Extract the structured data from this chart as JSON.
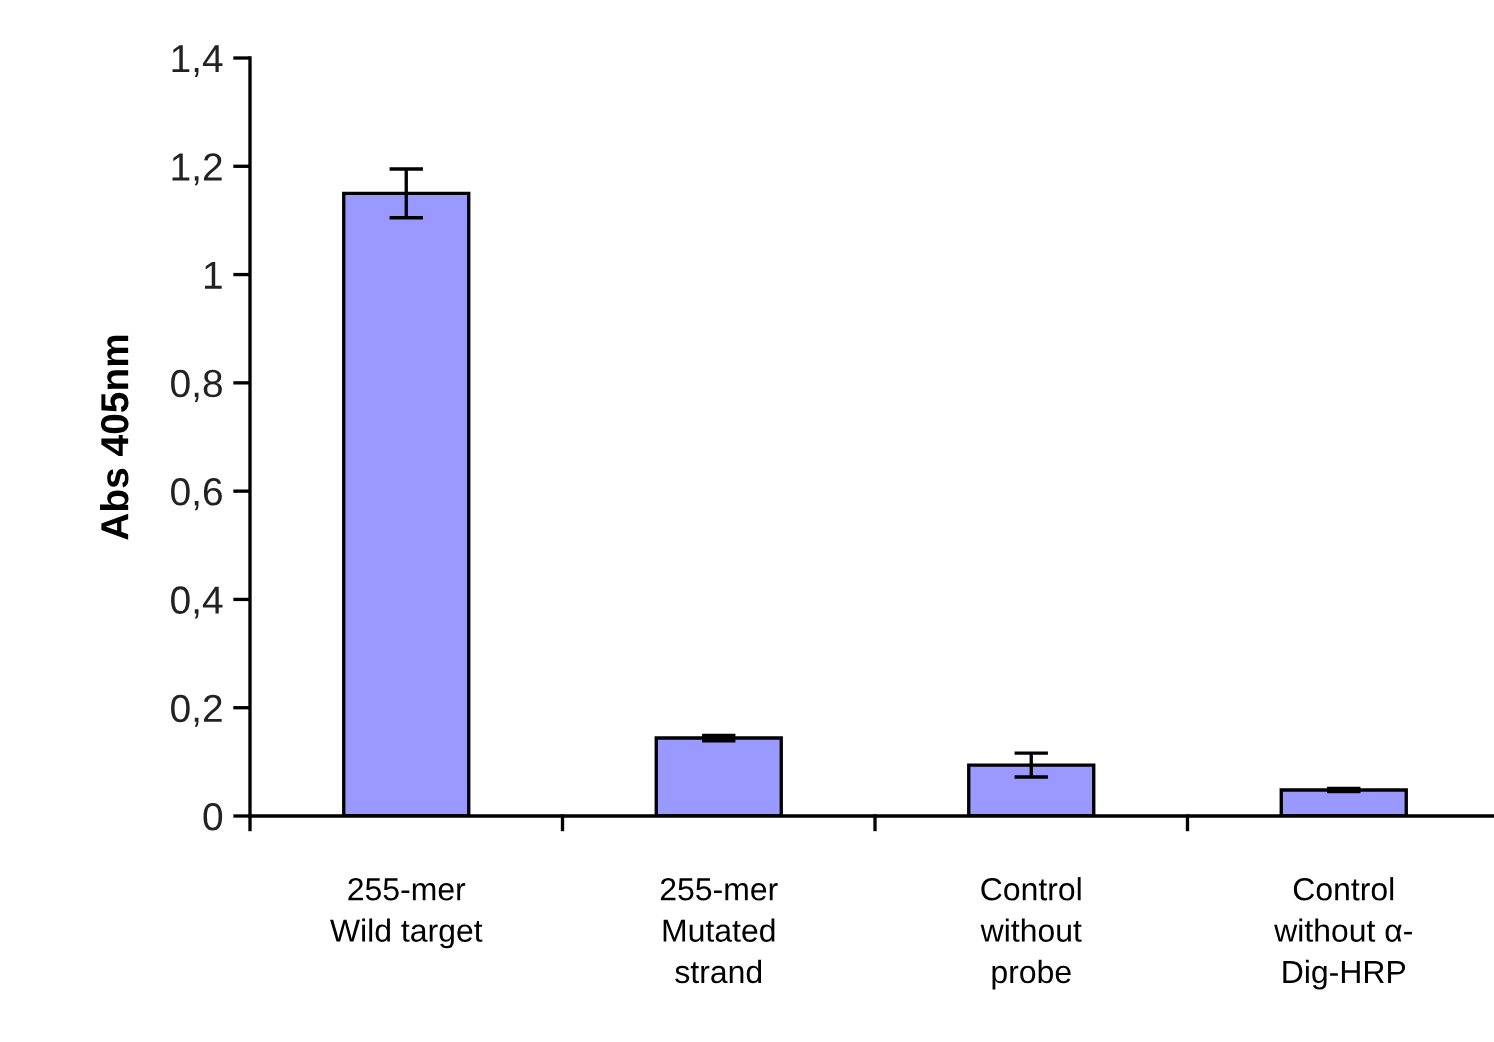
{
  "chart_data": {
    "type": "bar",
    "ylabel": "Abs 405nm",
    "categories": [
      "255-mer\nWild target",
      "255-mer\nMutated\nstrand",
      "Control\nwithout\nprobe",
      "Control\nwithout α-\nDig-HRP"
    ],
    "values": [
      1.15,
      0.144,
      0.094,
      0.048
    ],
    "errors": [
      0.045,
      0.005,
      0.022,
      0.003
    ],
    "color": "#9999ff",
    "ylim": [
      0,
      1.4
    ],
    "yticks": [
      0,
      {
        "value": 0.2,
        "label": "0,2"
      },
      {
        "value": 0.4,
        "label": "0,4"
      },
      {
        "value": 0.6,
        "label": "0,6"
      },
      {
        "value": 0.8,
        "label": "0,8"
      },
      1,
      {
        "value": 1.2,
        "label": "1,2"
      },
      {
        "value": 1.4,
        "label": "1,4"
      }
    ],
    "grid": false,
    "legend": false
  }
}
